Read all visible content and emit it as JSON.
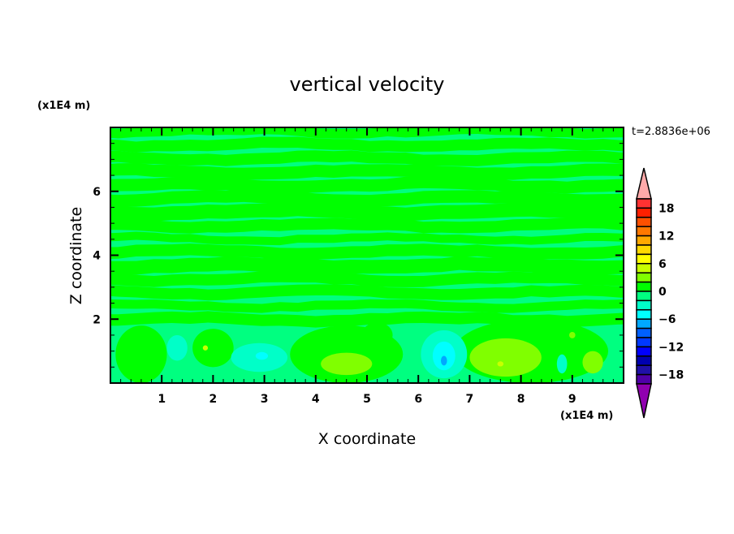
{
  "chart_data": {
    "type": "heatmap",
    "subtype": "filled-contour",
    "title": "vertical velocity",
    "xlabel": "X coordinate",
    "ylabel": "Z coordinate",
    "x_unit": "(x1E4 m)",
    "y_unit": "(x1E4 m)",
    "time_label": "t=2.8836e+06",
    "xlim": [
      0,
      10
    ],
    "ylim": [
      0,
      8
    ],
    "x_ticks": [
      1,
      2,
      3,
      4,
      5,
      6,
      7,
      8,
      9
    ],
    "x_tick_labels": [
      "1",
      "2",
      "3",
      "4",
      "5",
      "6",
      "7",
      "8",
      "9"
    ],
    "y_ticks": [
      2,
      4,
      6
    ],
    "y_tick_labels": [
      "2",
      "4",
      "6"
    ],
    "x_minor_step": 0.2,
    "y_minor_step": 0.5,
    "grid": false,
    "colorbar": {
      "placement": "right",
      "levels": [
        -18,
        -16,
        -14,
        -12,
        -10,
        -8,
        -6,
        -4,
        -2,
        0,
        2,
        4,
        6,
        8,
        10,
        12,
        14,
        16,
        18
      ],
      "tick_labels": [
        "18",
        "12",
        "6",
        "0",
        "−6",
        "−12",
        "−18"
      ],
      "tick_values": [
        18,
        12,
        6,
        0,
        -6,
        -12,
        -18
      ],
      "colors_top_to_bottom": [
        "#ff3232",
        "#ff2000",
        "#ff5000",
        "#ff7800",
        "#ffa800",
        "#ffd800",
        "#ffff00",
        "#c8ff00",
        "#80ff00",
        "#00ff00",
        "#00ff80",
        "#00ffc8",
        "#00ffff",
        "#00a8ff",
        "#0060ff",
        "#0038ff",
        "#0000ff",
        "#0000b0",
        "#2010a8",
        "#5000a8"
      ],
      "over_color": "#ffaaaa",
      "under_color": "#9000b0"
    },
    "background_interval": [
      -2,
      0
    ],
    "features": [
      {
        "x": 0.6,
        "z": 0.9,
        "rx": 0.5,
        "rz": 0.9,
        "range": [
          0,
          2
        ]
      },
      {
        "x": 2.0,
        "z": 1.1,
        "rx": 0.4,
        "rz": 0.6,
        "range": [
          0,
          2
        ]
      },
      {
        "x": 4.6,
        "z": 0.9,
        "rx": 1.1,
        "rz": 0.9,
        "range": [
          0,
          2
        ]
      },
      {
        "x": 8.2,
        "z": 1.0,
        "rx": 1.5,
        "rz": 1.0,
        "range": [
          0,
          2
        ]
      },
      {
        "x": 5.2,
        "z": 1.5,
        "rx": 0.3,
        "rz": 0.4,
        "range": [
          0,
          2
        ]
      },
      {
        "x": 4.6,
        "z": 0.6,
        "rx": 0.5,
        "rz": 0.35,
        "range": [
          2,
          4
        ]
      },
      {
        "x": 7.7,
        "z": 0.8,
        "rx": 0.7,
        "rz": 0.6,
        "range": [
          2,
          4
        ]
      },
      {
        "x": 9.4,
        "z": 0.65,
        "rx": 0.2,
        "rz": 0.35,
        "range": [
          2,
          4
        ]
      },
      {
        "x": 1.85,
        "z": 1.1,
        "rx": 0.05,
        "rz": 0.08,
        "range": [
          4,
          6
        ]
      },
      {
        "x": 7.6,
        "z": 0.6,
        "rx": 0.06,
        "rz": 0.08,
        "range": [
          4,
          6
        ]
      },
      {
        "x": 9.0,
        "z": 1.5,
        "rx": 0.06,
        "rz": 0.1,
        "range": [
          2,
          4
        ]
      },
      {
        "x": 1.3,
        "z": 1.1,
        "rx": 0.2,
        "rz": 0.4,
        "range": [
          -4,
          -2
        ]
      },
      {
        "x": 2.9,
        "z": 0.8,
        "rx": 0.55,
        "rz": 0.45,
        "range": [
          -4,
          -2
        ]
      },
      {
        "x": 6.5,
        "z": 0.9,
        "rx": 0.45,
        "rz": 0.75,
        "range": [
          -4,
          -2
        ]
      },
      {
        "x": 8.8,
        "z": 0.6,
        "rx": 0.1,
        "rz": 0.3,
        "range": [
          -4,
          -2
        ]
      },
      {
        "x": 2.95,
        "z": 0.85,
        "rx": 0.12,
        "rz": 0.12,
        "range": [
          -6,
          -4
        ]
      },
      {
        "x": 6.5,
        "z": 0.85,
        "rx": 0.22,
        "rz": 0.45,
        "range": [
          -6,
          -4
        ]
      },
      {
        "x": 6.5,
        "z": 0.7,
        "rx": 0.06,
        "rz": 0.15,
        "range": [
          -8,
          -6
        ]
      }
    ]
  }
}
